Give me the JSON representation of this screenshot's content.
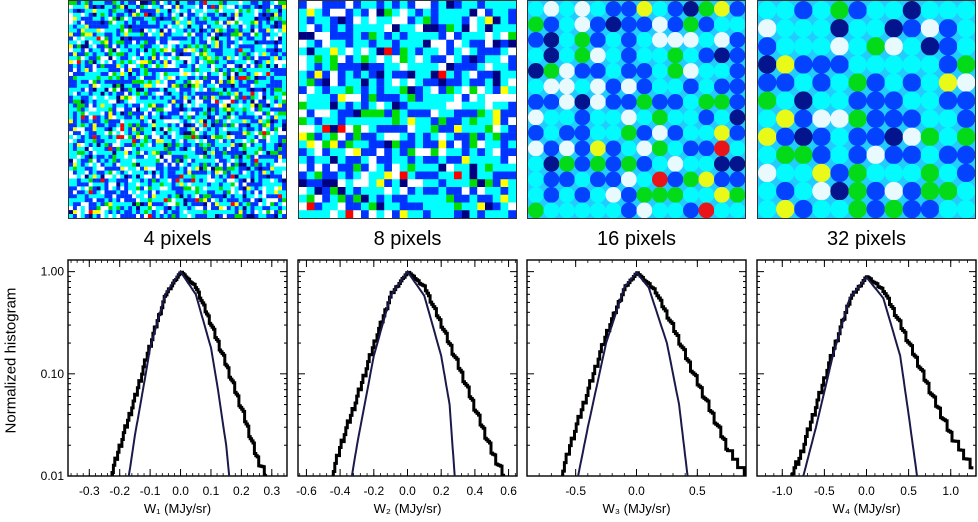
{
  "y_axis_label": "Normalized histogram",
  "maps": [
    {
      "label": "4 pixels",
      "scale": 4
    },
    {
      "label": "8 pixels",
      "scale": 8
    },
    {
      "label": "16 pixels",
      "scale": 16
    },
    {
      "label": "32 pixels",
      "scale": 32
    }
  ],
  "colormap": [
    "#ffffff",
    "#00ffff",
    "#0033ff",
    "#000080",
    "#00dd00",
    "#ffff00",
    "#ff0000"
  ],
  "chart_data": [
    {
      "type": "line",
      "xlabel": "W₁ (MJy/sr)",
      "xlim": [
        -0.37,
        0.35
      ],
      "ylim": [
        0.01,
        1.3
      ],
      "yscale": "log",
      "xticks": [
        -0.3,
        -0.2,
        -0.1,
        0.0,
        0.1,
        0.2,
        0.3
      ],
      "xticklabels": [
        "-0.3",
        "-0.2",
        "-0.1",
        "0.0",
        "0.1",
        "0.2",
        "0.3"
      ],
      "yticks": [
        0.01,
        0.1,
        1.0
      ],
      "yticklabels": [
        "0.01",
        "0.10",
        "1.00"
      ],
      "series": [
        {
          "style": "histogram",
          "x": [
            -0.23,
            -0.2,
            -0.15,
            -0.1,
            -0.05,
            0.0,
            0.05,
            0.1,
            0.15,
            0.2,
            0.25,
            0.28
          ],
          "y": [
            0.01,
            0.02,
            0.06,
            0.2,
            0.6,
            1.0,
            0.7,
            0.3,
            0.12,
            0.045,
            0.015,
            0.01
          ]
        },
        {
          "style": "gaussian",
          "x": [
            -0.17,
            -0.15,
            -0.12,
            -0.1,
            -0.05,
            0.0,
            0.05,
            0.1,
            0.12,
            0.15,
            0.16
          ],
          "y": [
            0.01,
            0.025,
            0.08,
            0.18,
            0.6,
            1.0,
            0.6,
            0.18,
            0.08,
            0.02,
            0.01
          ]
        }
      ]
    },
    {
      "type": "line",
      "xlabel": "W₂ (MJy/sr)",
      "xlim": [
        -0.65,
        0.65
      ],
      "ylim": [
        0.01,
        1.3
      ],
      "yscale": "log",
      "xticks": [
        -0.6,
        -0.4,
        -0.2,
        0.0,
        0.2,
        0.4,
        0.6
      ],
      "xticklabels": [
        "-0.6",
        "-0.4",
        "-0.2",
        "0.0",
        "0.2",
        "0.4",
        "0.6"
      ],
      "yticks": [
        0.01,
        0.1,
        1.0
      ],
      "yticklabels": [
        "0.01",
        "0.10",
        "1.00"
      ],
      "series": [
        {
          "style": "histogram",
          "x": [
            -0.45,
            -0.4,
            -0.3,
            -0.2,
            -0.1,
            0.0,
            0.1,
            0.2,
            0.3,
            0.4,
            0.5,
            0.57
          ],
          "y": [
            0.01,
            0.02,
            0.06,
            0.2,
            0.6,
            1.0,
            0.7,
            0.3,
            0.12,
            0.045,
            0.017,
            0.01
          ]
        },
        {
          "style": "gaussian",
          "x": [
            -0.33,
            -0.3,
            -0.2,
            -0.1,
            0.0,
            0.1,
            0.2,
            0.25,
            0.28
          ],
          "y": [
            0.01,
            0.02,
            0.15,
            0.58,
            1.0,
            0.58,
            0.15,
            0.05,
            0.01
          ]
        }
      ]
    },
    {
      "type": "line",
      "xlabel": "W₃ (MJy/sr)",
      "xlim": [
        -0.9,
        0.9
      ],
      "ylim": [
        0.01,
        1.3
      ],
      "yscale": "log",
      "xticks": [
        -0.5,
        0.0,
        0.5
      ],
      "xticklabels": [
        "-0.5",
        "0.0",
        "0.5"
      ],
      "yticks": [
        0.01,
        0.1,
        1.0
      ],
      "yticklabels": [
        "0.01",
        "0.10",
        "1.00"
      ],
      "series": [
        {
          "style": "histogram",
          "x": [
            -0.62,
            -0.55,
            -0.4,
            -0.25,
            -0.1,
            0.0,
            0.15,
            0.3,
            0.45,
            0.6,
            0.75,
            0.9
          ],
          "y": [
            0.01,
            0.02,
            0.07,
            0.25,
            0.7,
            0.98,
            0.65,
            0.28,
            0.11,
            0.045,
            0.018,
            0.01
          ]
        },
        {
          "style": "gaussian",
          "x": [
            -0.48,
            -0.4,
            -0.25,
            -0.1,
            0.0,
            0.1,
            0.25,
            0.35,
            0.42
          ],
          "y": [
            0.01,
            0.03,
            0.2,
            0.7,
            0.98,
            0.7,
            0.2,
            0.05,
            0.01
          ]
        }
      ]
    },
    {
      "type": "line",
      "xlabel": "W₄ (MJy/sr)",
      "xlim": [
        -1.3,
        1.3
      ],
      "ylim": [
        0.01,
        1.3
      ],
      "yscale": "log",
      "xticks": [
        -1.0,
        -0.5,
        0.0,
        0.5,
        1.0
      ],
      "xticklabels": [
        "-1.0",
        "-0.5",
        "0.0",
        "0.5",
        "1.0"
      ],
      "yticks": [
        0.01,
        0.1,
        1.0
      ],
      "yticklabels": [
        "0.01",
        "0.10",
        "1.00"
      ],
      "series": [
        {
          "style": "histogram",
          "x": [
            -0.9,
            -0.8,
            -0.6,
            -0.4,
            -0.2,
            0.0,
            0.2,
            0.4,
            0.6,
            0.8,
            1.0,
            1.25
          ],
          "y": [
            0.01,
            0.015,
            0.05,
            0.17,
            0.55,
            0.9,
            0.65,
            0.3,
            0.13,
            0.055,
            0.025,
            0.012
          ]
        },
        {
          "style": "gaussian",
          "x": [
            -0.75,
            -0.6,
            -0.4,
            -0.2,
            0.0,
            0.2,
            0.4,
            0.5,
            0.6
          ],
          "y": [
            0.01,
            0.03,
            0.15,
            0.55,
            0.88,
            0.55,
            0.15,
            0.04,
            0.01
          ]
        }
      ]
    }
  ]
}
